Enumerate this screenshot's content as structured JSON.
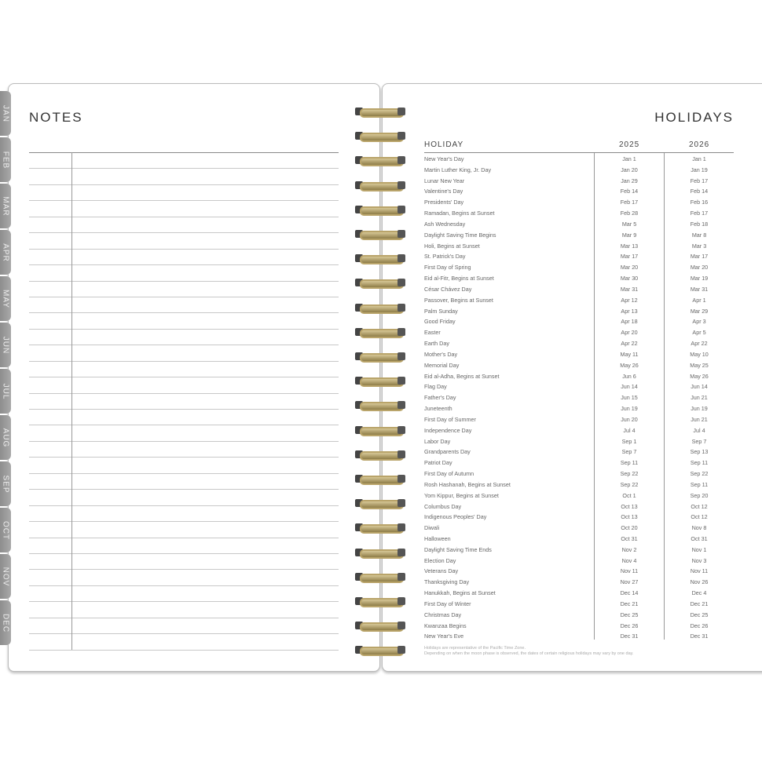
{
  "tabs": [
    "JAN",
    "FEB",
    "MAR",
    "APR",
    "MAY",
    "JUN",
    "JUL",
    "AUG",
    "SEP",
    "OCT",
    "NOV",
    "DEC"
  ],
  "notes": {
    "title": "NOTES"
  },
  "holidays": {
    "title": "HOLIDAYS",
    "headers": {
      "name": "HOLIDAY",
      "y1": "2025",
      "y2": "2026"
    },
    "rows": [
      [
        "New Year's Day",
        "Jan 1",
        "Jan 1"
      ],
      [
        "Martin Luther King, Jr. Day",
        "Jan 20",
        "Jan 19"
      ],
      [
        "Lunar New Year",
        "Jan 29",
        "Feb 17"
      ],
      [
        "Valentine's Day",
        "Feb 14",
        "Feb 14"
      ],
      [
        "Presidents' Day",
        "Feb 17",
        "Feb 16"
      ],
      [
        "Ramadan, Begins at Sunset",
        "Feb 28",
        "Feb 17"
      ],
      [
        "Ash Wednesday",
        "Mar 5",
        "Feb 18"
      ],
      [
        "Daylight Saving Time Begins",
        "Mar 9",
        "Mar 8"
      ],
      [
        "Holi, Begins at Sunset",
        "Mar 13",
        "Mar 3"
      ],
      [
        "St. Patrick's Day",
        "Mar 17",
        "Mar 17"
      ],
      [
        "First Day of Spring",
        "Mar 20",
        "Mar 20"
      ],
      [
        "Eid al-Fitr, Begins at Sunset",
        "Mar 30",
        "Mar 19"
      ],
      [
        "César Chávez Day",
        "Mar 31",
        "Mar 31"
      ],
      [
        "Passover, Begins at Sunset",
        "Apr 12",
        "Apr 1"
      ],
      [
        "Palm Sunday",
        "Apr 13",
        "Mar 29"
      ],
      [
        "Good Friday",
        "Apr 18",
        "Apr 3"
      ],
      [
        "Easter",
        "Apr 20",
        "Apr 5"
      ],
      [
        "Earth Day",
        "Apr 22",
        "Apr 22"
      ],
      [
        "Mother's Day",
        "May 11",
        "May 10"
      ],
      [
        "Memorial Day",
        "May 26",
        "May 25"
      ],
      [
        "Eid al-Adha, Begins at Sunset",
        "Jun 6",
        "May 26"
      ],
      [
        "Flag Day",
        "Jun 14",
        "Jun 14"
      ],
      [
        "Father's Day",
        "Jun 15",
        "Jun 21"
      ],
      [
        "Juneteenth",
        "Jun 19",
        "Jun 19"
      ],
      [
        "First Day of Summer",
        "Jun 20",
        "Jun 21"
      ],
      [
        "Independence Day",
        "Jul 4",
        "Jul 4"
      ],
      [
        "Labor Day",
        "Sep 1",
        "Sep 7"
      ],
      [
        "Grandparents Day",
        "Sep 7",
        "Sep 13"
      ],
      [
        "Patriot Day",
        "Sep 11",
        "Sep 11"
      ],
      [
        "First Day of Autumn",
        "Sep 22",
        "Sep 22"
      ],
      [
        "Rosh Hashanah, Begins at Sunset",
        "Sep 22",
        "Sep 11"
      ],
      [
        "Yom Kippur, Begins at Sunset",
        "Oct 1",
        "Sep 20"
      ],
      [
        "Columbus Day",
        "Oct 13",
        "Oct 12"
      ],
      [
        "Indigenous Peoples' Day",
        "Oct 13",
        "Oct 12"
      ],
      [
        "Diwali",
        "Oct 20",
        "Nov 8"
      ],
      [
        "Halloween",
        "Oct 31",
        "Oct 31"
      ],
      [
        "Daylight Saving Time Ends",
        "Nov 2",
        "Nov 1"
      ],
      [
        "Election Day",
        "Nov 4",
        "Nov 3"
      ],
      [
        "Veterans Day",
        "Nov 11",
        "Nov 11"
      ],
      [
        "Thanksgiving Day",
        "Nov 27",
        "Nov 26"
      ],
      [
        "Hanukkah, Begins at Sunset",
        "Dec 14",
        "Dec 4"
      ],
      [
        "First Day of Winter",
        "Dec 21",
        "Dec 21"
      ],
      [
        "Christmas Day",
        "Dec 25",
        "Dec 25"
      ],
      [
        "Kwanzaa Begins",
        "Dec 26",
        "Dec 26"
      ],
      [
        "New Year's Eve",
        "Dec 31",
        "Dec 31"
      ]
    ],
    "footnotes": [
      "Holidays are representative of the Pacific Time Zone.",
      "Depending on when the moon phase is observed, the dates of certain religious holidays may vary by one day."
    ]
  }
}
